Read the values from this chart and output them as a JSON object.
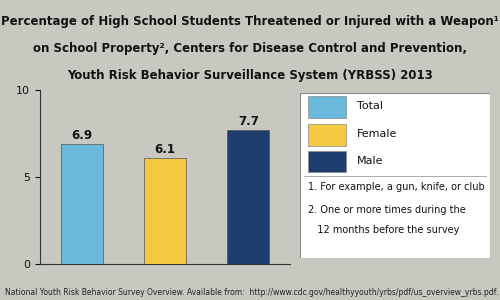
{
  "categories": [
    "Total",
    "Female",
    "Male"
  ],
  "values": [
    6.9,
    6.1,
    7.7
  ],
  "bar_colors": [
    "#6BB8DD",
    "#F5C842",
    "#1F3C6E"
  ],
  "title_line1": "Percentage of High School Students Threatened or Injured with a Weapon¹",
  "title_line2": "on School Property², Centers for Disease Control and Prevention,",
  "title_line3": "Youth Risk Behavior Surveillance System (YRBSS) 2013",
  "ylim": [
    0,
    10
  ],
  "yticks": [
    0,
    5,
    10
  ],
  "legend_labels": [
    "Total",
    "Female",
    "Male"
  ],
  "legend_colors": [
    "#6BB8DD",
    "#F5C842",
    "#1F3C6E"
  ],
  "footnote1": "1. For example, a gun, knife, or club",
  "footnote2": "2. One or more times during the",
  "footnote3": "   12 months before the survey",
  "footer_text": "National Youth Risk Behavior Survey Overview. Available from:  http://www.cdc.gov/healthyyouth/yrbs/pdf/us_overview_yrbs.pdf.",
  "bar_label_fontsize": 8.5,
  "title_fontsize": 8.5,
  "axis_fontsize": 8,
  "legend_fontsize": 8,
  "footnote_fontsize": 7,
  "footer_fontsize": 5.5,
  "bg_color": "#c8c8c0"
}
